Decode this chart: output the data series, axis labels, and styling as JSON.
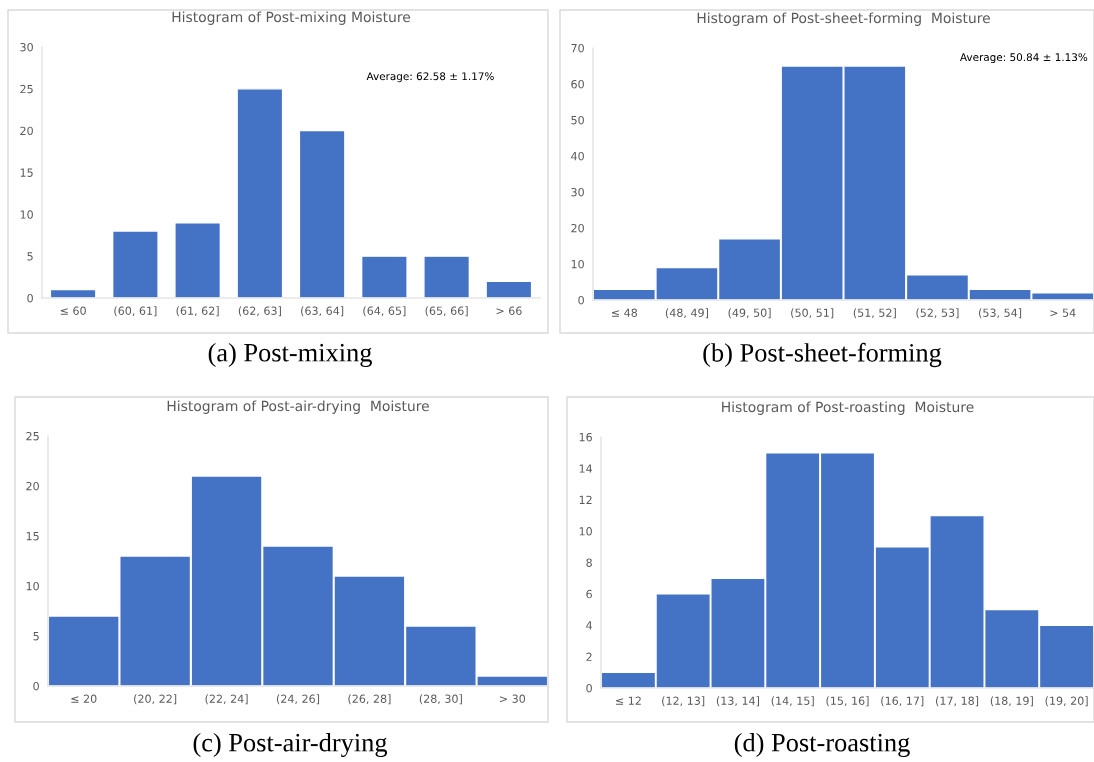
{
  "chart_data": [
    {
      "type": "bar",
      "title": "Histogram of Post-mixing Moisture",
      "categories": [
        "≤ 60",
        "(60, 61]",
        "(61, 62]",
        "(62, 63]",
        "(63, 64]",
        "(64, 65]",
        "(65, 66]",
        "> 66"
      ],
      "values": [
        1,
        8,
        9,
        25,
        20,
        5,
        5,
        2
      ],
      "color": "#4472c4",
      "ylim": [
        0,
        30
      ],
      "yticks": [
        0,
        5,
        10,
        15,
        20,
        25,
        30
      ],
      "grid": false,
      "annotations": [
        "Average: 62.58 ± 1.17%",
        "(a) Post-mixing"
      ]
    },
    {
      "type": "bar",
      "title": "Histogram of Post-sheet-forming  Moisture",
      "categories": [
        "≤ 48",
        "(48, 49]",
        "(49, 50]",
        "(50, 51]",
        "(51, 52]",
        "(52, 53]",
        "(53, 54]",
        "> 54"
      ],
      "values": [
        3,
        9,
        17,
        65,
        65,
        7,
        3,
        2
      ],
      "color": "#4472c4",
      "ylim": [
        0,
        70
      ],
      "yticks": [
        0,
        10,
        20,
        30,
        40,
        50,
        60,
        70
      ],
      "grid": false,
      "annotations": [
        "Average: 50.84 ± 1.13%",
        "(b) Post-sheet-forming"
      ]
    },
    {
      "type": "bar",
      "title": "Histogram of Post-air-drying  Moisture",
      "categories": [
        "≤ 20",
        "(20, 22]",
        "(22, 24]",
        "(24, 26]",
        "(26, 28]",
        "(28, 30]",
        "> 30"
      ],
      "values": [
        7,
        13,
        21,
        14,
        11,
        6,
        1
      ],
      "color": "#4472c4",
      "ylim": [
        0,
        25
      ],
      "yticks": [
        0,
        5,
        10,
        15,
        20,
        25
      ],
      "grid": false,
      "annotations": [
        "(c) Post-air-drying"
      ]
    },
    {
      "type": "bar",
      "title": "Histogram of Post-roasting  Moisture",
      "categories": [
        "≤ 12",
        "(12, 13]",
        "(13, 14]",
        "(14, 15]",
        "(15, 16]",
        "(16, 17]",
        "(17, 18]",
        "(18, 19]",
        "(19, 20]"
      ],
      "values": [
        1,
        6,
        7,
        15,
        15,
        9,
        11,
        5,
        4
      ],
      "color": "#4472c4",
      "ylim": [
        0,
        16
      ],
      "yticks": [
        0,
        2,
        4,
        6,
        8,
        10,
        12,
        14,
        16
      ],
      "grid": false,
      "annotations": [
        "(d) Post-roasting"
      ]
    }
  ]
}
